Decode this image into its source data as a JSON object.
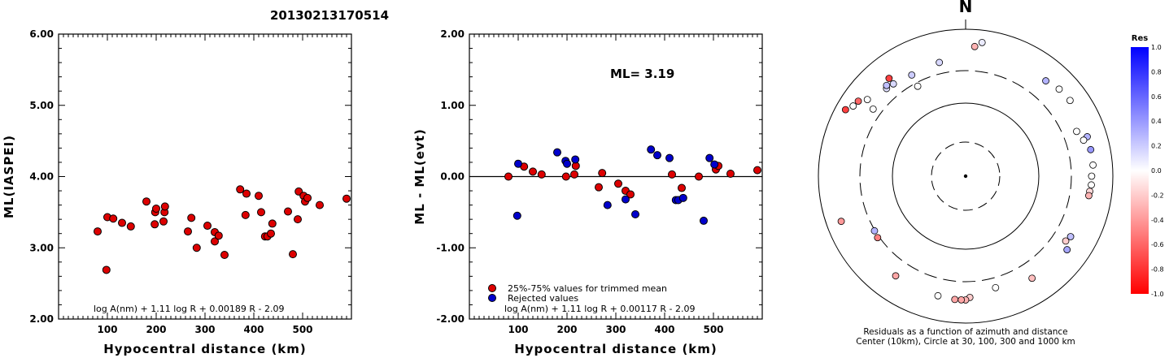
{
  "title": "20130213170514",
  "chart_data": [
    {
      "type": "scatter",
      "xlabel": "Hypocentral distance (km)",
      "ylabel": "ML(IASPEI)",
      "xlim": [
        0,
        600
      ],
      "ylim": [
        2.0,
        6.0
      ],
      "xticks": [
        "100",
        "200",
        "300",
        "400",
        "500"
      ],
      "xtick_values": [
        100,
        200,
        300,
        400,
        500
      ],
      "yticks": [
        "2.00",
        "3.00",
        "4.00",
        "5.00",
        "6.00"
      ],
      "ytick_values": [
        2,
        3,
        4,
        5,
        6
      ],
      "formula": "log A(nm) + 1.11 log R + 0.00189 R - 2.09",
      "color": "#dd0000",
      "series": [
        {
          "x": [
            80,
            98,
            100,
            112,
            130,
            148,
            180,
            197,
            198,
            200,
            215,
            217,
            218,
            265,
            272,
            283,
            305,
            320,
            320,
            328,
            340,
            372,
            383,
            385,
            410,
            415,
            423,
            428,
            435,
            438,
            470,
            480,
            490,
            492,
            502,
            505,
            510,
            535,
            590
          ],
          "y": [
            3.23,
            2.69,
            3.43,
            3.41,
            3.35,
            3.3,
            3.65,
            3.33,
            3.5,
            3.55,
            3.37,
            3.5,
            3.58,
            3.23,
            3.42,
            3.0,
            3.31,
            3.09,
            3.22,
            3.17,
            2.9,
            3.82,
            3.46,
            3.76,
            3.73,
            3.5,
            3.16,
            3.16,
            3.2,
            3.34,
            3.51,
            2.91,
            3.4,
            3.79,
            3.73,
            3.65,
            3.7,
            3.6,
            3.69
          ]
        }
      ]
    },
    {
      "type": "scatter",
      "xlabel": "Hypocentral distance (km)",
      "ylabel": "ML - ML(evt)",
      "xlim": [
        0,
        600
      ],
      "ylim": [
        -2.0,
        2.0
      ],
      "xticks": [
        "100",
        "200",
        "300",
        "400",
        "500"
      ],
      "xtick_values": [
        100,
        200,
        300,
        400,
        500
      ],
      "yticks": [
        "-2.00",
        "-1.00",
        "0.00",
        "1.00",
        "2.00"
      ],
      "ytick_values": [
        -2,
        -1,
        0,
        1,
        2
      ],
      "annotation": "ML= 3.19",
      "formula": "log A(nm) + 1.11 log R + 0.00117 R - 2.09",
      "legend": [
        "25%-75% values for trimmed mean",
        "Rejected values"
      ],
      "series": [
        {
          "name": "25%-75% values for trimmed mean",
          "color": "#dd0000",
          "x": [
            80,
            112,
            130,
            148,
            198,
            215,
            218,
            265,
            272,
            305,
            320,
            330,
            415,
            435,
            470,
            505,
            510,
            535,
            590
          ],
          "y": [
            0.0,
            0.14,
            0.07,
            0.03,
            0.0,
            0.03,
            0.15,
            -0.15,
            0.05,
            -0.1,
            -0.2,
            -0.25,
            0.03,
            -0.16,
            0.0,
            0.1,
            0.15,
            0.04,
            0.09
          ]
        },
        {
          "name": "Rejected values",
          "color": "#0000cc",
          "x": [
            98,
            100,
            180,
            197,
            200,
            217,
            283,
            320,
            340,
            372,
            385,
            410,
            423,
            428,
            438,
            480,
            492,
            502
          ],
          "y": [
            -0.55,
            0.18,
            0.34,
            0.22,
            0.18,
            0.24,
            -0.4,
            -0.32,
            -0.53,
            0.38,
            0.3,
            0.26,
            -0.33,
            -0.33,
            -0.3,
            -0.62,
            0.26,
            0.17
          ]
        }
      ]
    },
    {
      "type": "scatter",
      "subtype": "polar residuals",
      "north_label": "N",
      "caption_line1": "Residuals as a function of azimuth and distance",
      "caption_line2": "Center (10km), Circle at 30, 100, 300 and 1000 km",
      "colorbar_title": "Res",
      "colorbar_ticks": [
        "1.0",
        "0.8",
        "0.6",
        "0.4",
        "0.2",
        "0.0",
        "-0.2",
        "-0.4",
        "-0.6",
        "-0.8",
        "-1.0"
      ],
      "colorbar_tick_values": [
        1.0,
        0.8,
        0.6,
        0.4,
        0.2,
        0.0,
        -0.2,
        -0.4,
        -0.6,
        -0.8,
        -1.0
      ],
      "circles_km": [
        30,
        100,
        300,
        1000
      ],
      "center_km": 10,
      "points": [
        {
          "azimuth": 4,
          "distance": 610,
          "res": -0.3
        },
        {
          "azimuth": 7,
          "distance": 700,
          "res": 0.08
        },
        {
          "azimuth": 347,
          "distance": 415,
          "res": 0.15
        },
        {
          "azimuth": 332,
          "distance": 265,
          "res": 0.0
        },
        {
          "azimuth": 306,
          "distance": 385,
          "res": 0.0
        },
        {
          "azimuth": 318,
          "distance": 430,
          "res": 0.12
        },
        {
          "azimuth": 322,
          "distance": 420,
          "res": 0.15
        },
        {
          "azimuth": 319,
          "distance": 460,
          "res": 0.25
        },
        {
          "azimuth": 322,
          "distance": 515,
          "res": -0.75
        },
        {
          "azimuth": 308,
          "distance": 520,
          "res": 0.0
        },
        {
          "azimuth": 305,
          "distance": 625,
          "res": -0.6
        },
        {
          "azimuth": 302,
          "distance": 655,
          "res": 0.0
        },
        {
          "azimuth": 299,
          "distance": 750,
          "res": -0.75
        },
        {
          "azimuth": 332,
          "distance": 390,
          "res": 0.2
        },
        {
          "azimuth": 40,
          "distance": 520,
          "res": 0.3
        },
        {
          "azimuth": 47,
          "distance": 570,
          "res": 0.0
        },
        {
          "azimuth": 54,
          "distance": 590,
          "res": 0.0
        },
        {
          "azimuth": 68,
          "distance": 450,
          "res": 0.0
        },
        {
          "azimuth": 72,
          "distance": 570,
          "res": 0.3
        },
        {
          "azimuth": 73,
          "distance": 500,
          "res": 0.0
        },
        {
          "azimuth": 78,
          "distance": 570,
          "res": 0.4
        },
        {
          "azimuth": 85,
          "distance": 570,
          "res": 0.0
        },
        {
          "azimuth": 90,
          "distance": 540,
          "res": 0.0
        },
        {
          "azimuth": 94,
          "distance": 540,
          "res": 0.0
        },
        {
          "azimuth": 97,
          "distance": 525,
          "res": -0.15
        },
        {
          "azimuth": 99,
          "distance": 520,
          "res": -0.3
        },
        {
          "azimuth": 120,
          "distance": 470,
          "res": 0.25
        },
        {
          "azimuth": 123,
          "distance": 445,
          "res": -0.2
        },
        {
          "azimuth": 126,
          "distance": 530,
          "res": 0.35
        },
        {
          "azimuth": 147,
          "distance": 480,
          "res": -0.25
        },
        {
          "azimuth": 165,
          "distance": 400,
          "res": 0.0
        },
        {
          "azimuth": 178,
          "distance": 475,
          "res": -0.2
        },
        {
          "azimuth": 180,
          "distance": 510,
          "res": -0.3
        },
        {
          "azimuth": 182,
          "distance": 510,
          "res": -0.35
        },
        {
          "azimuth": 185,
          "distance": 510,
          "res": -0.35
        },
        {
          "azimuth": 193,
          "distance": 495,
          "res": 0.0
        },
        {
          "azimuth": 215,
          "distance": 480,
          "res": -0.35
        },
        {
          "azimuth": 235,
          "distance": 315,
          "res": -0.5
        },
        {
          "azimuth": 239,
          "distance": 305,
          "res": 0.3
        },
        {
          "azimuth": 250,
          "distance": 650,
          "res": -0.4
        }
      ]
    }
  ]
}
